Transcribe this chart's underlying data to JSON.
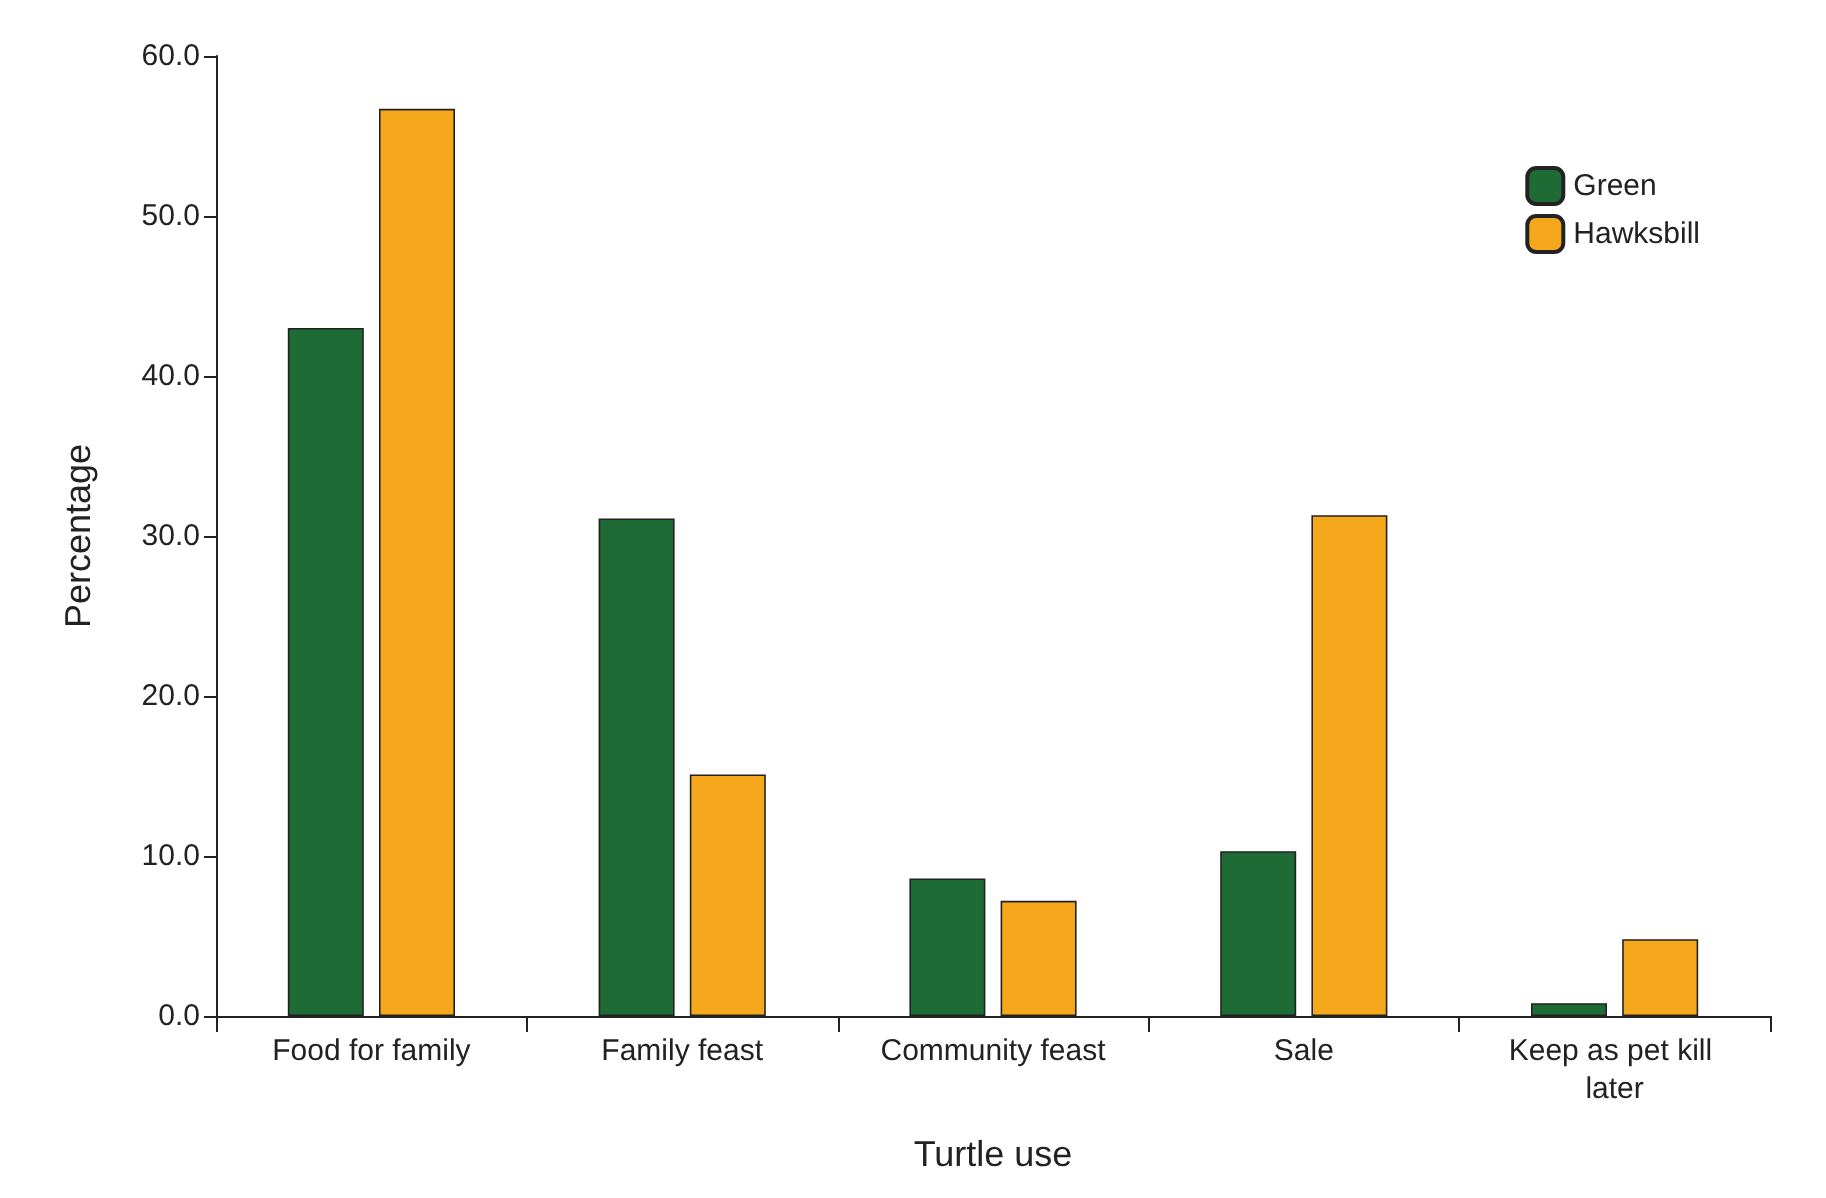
{
  "chart_data": {
    "type": "bar",
    "xlabel": "Turtle use",
    "ylabel": "Percentage",
    "categories": [
      "Food for family",
      "Family feast",
      "Community feast",
      "Sale",
      "Keep as pet kill later"
    ],
    "series": [
      {
        "name": "Green",
        "color": "#1e6b35",
        "values": [
          43.0,
          31.1,
          8.6,
          10.3,
          0.8
        ]
      },
      {
        "name": "Hawksbill",
        "color": "#f6a81c",
        "values": [
          56.7,
          15.1,
          7.2,
          31.3,
          4.8
        ]
      }
    ],
    "ylim": [
      0,
      60
    ],
    "yticks": [
      {
        "value": 0,
        "label": "0.0"
      },
      {
        "value": 10,
        "label": "10.0"
      },
      {
        "value": 20,
        "label": "20.0"
      },
      {
        "value": 30,
        "label": "30.0"
      },
      {
        "value": 40,
        "label": "40.0"
      },
      {
        "value": 50,
        "label": "50.0"
      },
      {
        "value": 60,
        "label": "60.0"
      }
    ],
    "legend": "top right",
    "grid": false
  }
}
